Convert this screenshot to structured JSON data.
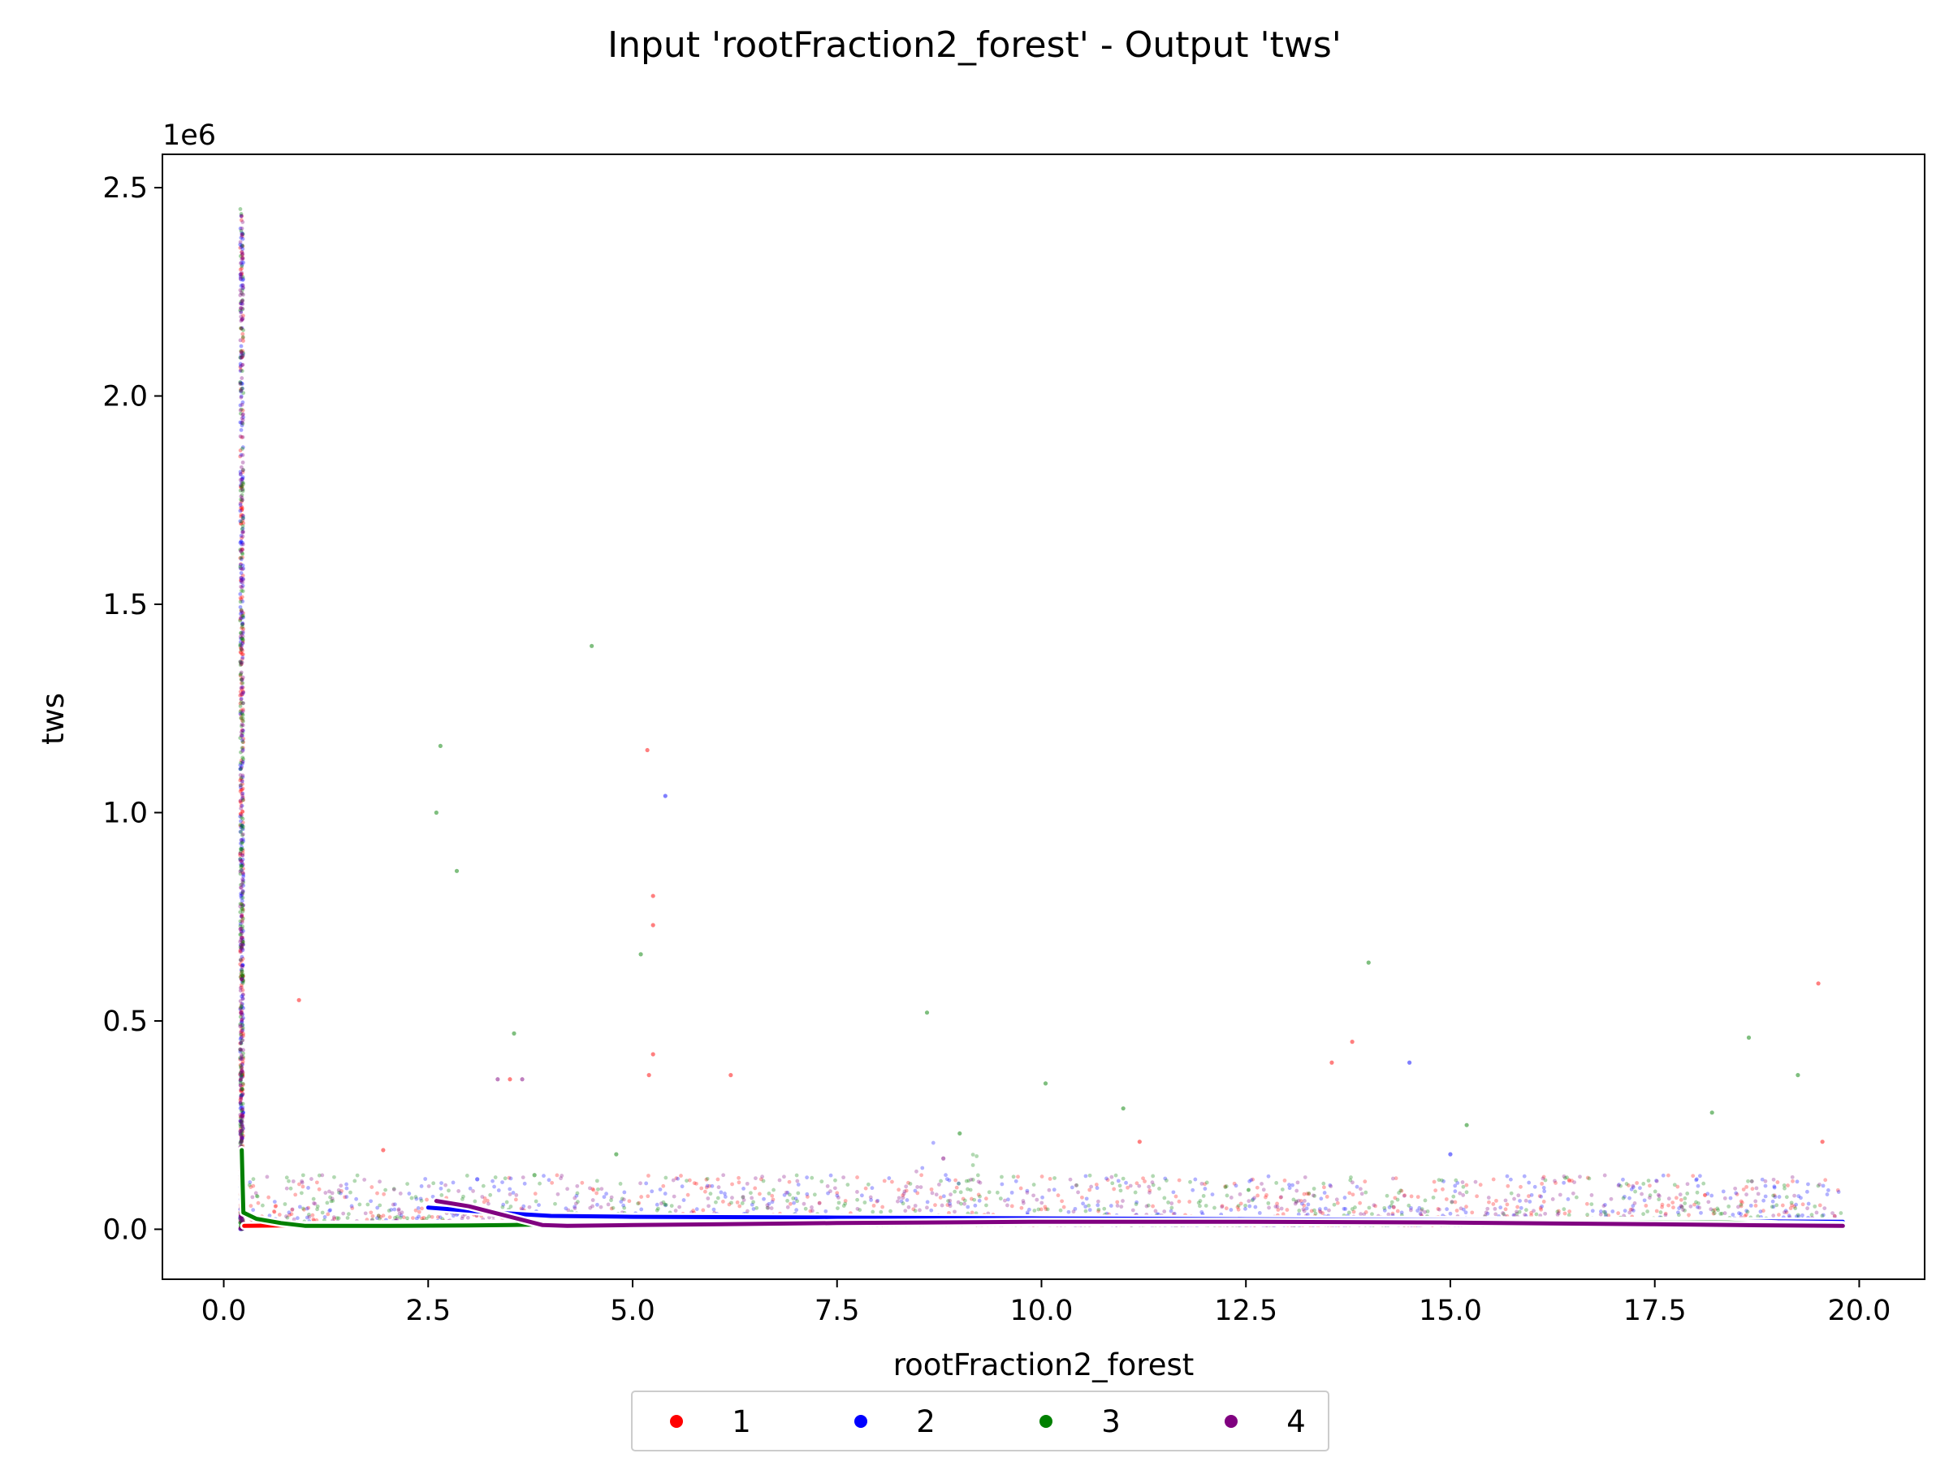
{
  "chart_data": {
    "type": "scatter",
    "title": "Input 'rootFraction2_forest' - Output 'tws'",
    "xlabel": "rootFraction2_forest",
    "ylabel": "tws",
    "y_offset_label": "1e6",
    "xlim": [
      -0.75,
      20.8
    ],
    "ylim": [
      -0.12,
      2.58
    ],
    "xticks": [
      0.0,
      2.5,
      5.0,
      7.5,
      10.0,
      12.5,
      15.0,
      17.5,
      20.0
    ],
    "xtick_labels": [
      "0.0",
      "2.5",
      "5.0",
      "7.5",
      "10.0",
      "12.5",
      "15.0",
      "17.5",
      "20.0"
    ],
    "yticks": [
      0.0,
      0.5,
      1.0,
      1.5,
      2.0,
      2.5
    ],
    "ytick_labels": [
      "0.0",
      "0.5",
      "1.0",
      "1.5",
      "2.0",
      "2.5"
    ],
    "legend_position": "bottom-center",
    "series": [
      {
        "name": "1",
        "color": "#ff0000",
        "outliers": [
          [
            0.92,
            0.55
          ],
          [
            5.18,
            1.15
          ],
          [
            5.25,
            0.8
          ],
          [
            5.25,
            0.73
          ],
          [
            5.25,
            0.42
          ],
          [
            5.2,
            0.37
          ],
          [
            6.2,
            0.37
          ],
          [
            3.5,
            0.36
          ],
          [
            13.8,
            0.45
          ],
          [
            13.55,
            0.4
          ],
          [
            19.5,
            0.59
          ],
          [
            19.55,
            0.21
          ],
          [
            1.95,
            0.19
          ],
          [
            11.2,
            0.21
          ]
        ],
        "trend": [
          [
            0.25,
            0.008
          ],
          [
            2.0,
            0.012
          ],
          [
            5.0,
            0.016
          ],
          [
            10.0,
            0.018
          ],
          [
            15.0,
            0.016
          ],
          [
            19.8,
            0.01
          ]
        ]
      },
      {
        "name": "2",
        "color": "#0000ff",
        "outliers": [
          [
            5.4,
            1.04
          ],
          [
            14.5,
            0.4
          ],
          [
            15.0,
            0.18
          ],
          [
            3.1,
            0.12
          ]
        ],
        "trend": [
          [
            2.5,
            0.052
          ],
          [
            3.3,
            0.04
          ],
          [
            4.0,
            0.032
          ],
          [
            5.0,
            0.03
          ],
          [
            7.5,
            0.028
          ],
          [
            10.0,
            0.026
          ],
          [
            12.5,
            0.024
          ],
          [
            15.0,
            0.022
          ],
          [
            17.5,
            0.02
          ],
          [
            19.8,
            0.018
          ]
        ]
      },
      {
        "name": "3",
        "color": "#008000",
        "outliers": [
          [
            4.5,
            1.4
          ],
          [
            2.6,
            1.0
          ],
          [
            2.65,
            1.16
          ],
          [
            2.85,
            0.86
          ],
          [
            5.1,
            0.66
          ],
          [
            3.55,
            0.47
          ],
          [
            8.6,
            0.52
          ],
          [
            14.0,
            0.64
          ],
          [
            10.05,
            0.35
          ],
          [
            11.0,
            0.29
          ],
          [
            18.65,
            0.46
          ],
          [
            19.25,
            0.37
          ],
          [
            18.2,
            0.28
          ],
          [
            15.2,
            0.25
          ],
          [
            9.0,
            0.23
          ],
          [
            4.8,
            0.18
          ],
          [
            3.8,
            0.13
          ]
        ],
        "trend": [
          [
            0.22,
            0.19
          ],
          [
            0.24,
            0.04
          ],
          [
            0.4,
            0.025
          ],
          [
            0.7,
            0.015
          ],
          [
            1.0,
            0.008
          ],
          [
            2.0,
            0.008
          ],
          [
            3.0,
            0.009
          ],
          [
            3.5,
            0.01
          ],
          [
            4.0,
            0.012
          ],
          [
            7.5,
            0.015
          ],
          [
            10.0,
            0.016
          ],
          [
            15.0,
            0.017
          ],
          [
            17.5,
            0.017
          ],
          [
            18.4,
            0.016
          ],
          [
            19.0,
            0.012
          ],
          [
            19.8,
            0.01
          ]
        ]
      },
      {
        "name": "4",
        "color": "#800080",
        "outliers": [
          [
            0.22,
            0.7
          ],
          [
            0.22,
            0.6
          ],
          [
            0.22,
            0.52
          ],
          [
            3.35,
            0.36
          ],
          [
            3.65,
            0.36
          ],
          [
            8.8,
            0.17
          ]
        ],
        "trend": [
          [
            2.6,
            0.068
          ],
          [
            3.0,
            0.055
          ],
          [
            3.3,
            0.04
          ],
          [
            3.6,
            0.025
          ],
          [
            3.9,
            0.01
          ],
          [
            4.2,
            0.008
          ],
          [
            5.0,
            0.01
          ],
          [
            7.5,
            0.015
          ],
          [
            10.0,
            0.018
          ],
          [
            12.5,
            0.018
          ],
          [
            15.0,
            0.016
          ],
          [
            17.5,
            0.012
          ],
          [
            18.5,
            0.01
          ],
          [
            19.8,
            0.008
          ]
        ]
      }
    ]
  }
}
